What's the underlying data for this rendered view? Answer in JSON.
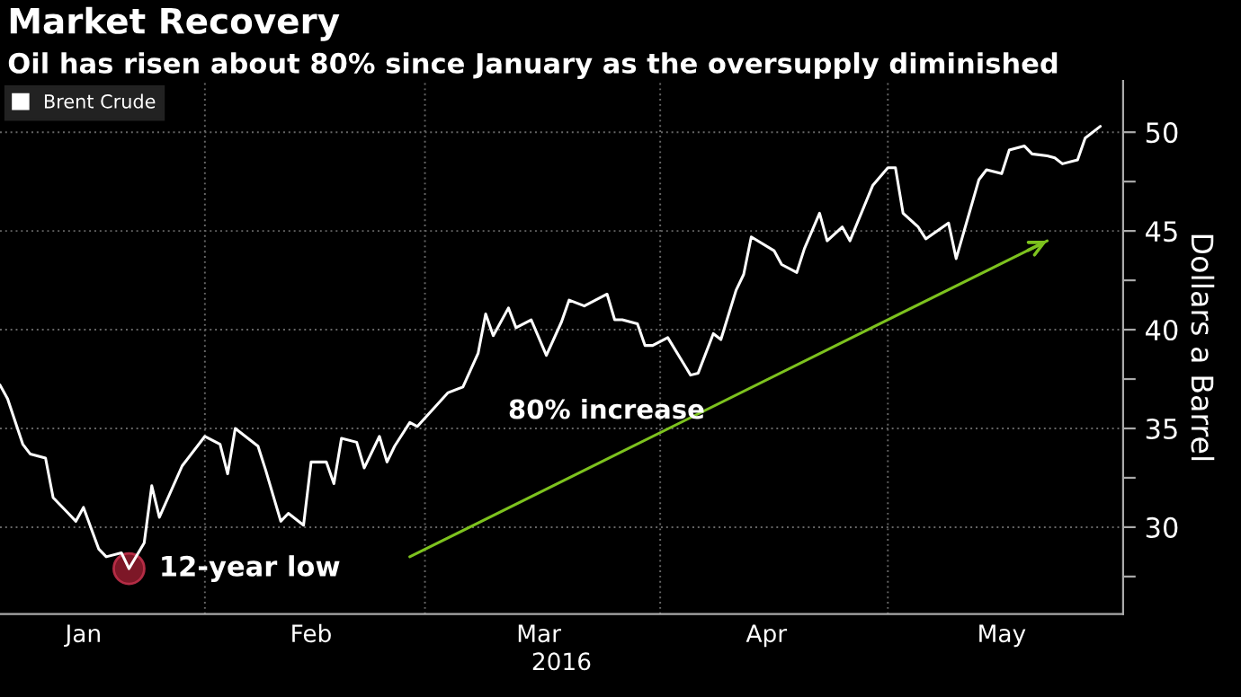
{
  "chart_data": {
    "type": "line",
    "title": "Market Recovery",
    "subtitle": "Oil has risen about 80% since January as the oversupply diminished",
    "xlabel": "2016",
    "ylabel": "Dollars a Barrel",
    "annotations": [
      {
        "text": "12-year low",
        "x": "2016-01-22",
        "y": 27.9
      },
      "80% increase"
    ],
    "series": [
      {
        "name": "Brent Crude",
        "color": "#ffffff",
        "x": [
          "2016-01-05",
          "2016-01-06",
          "2016-01-08",
          "2016-01-09",
          "2016-01-11",
          "2016-01-12",
          "2016-01-14",
          "2016-01-15",
          "2016-01-16",
          "2016-01-18",
          "2016-01-19",
          "2016-01-21",
          "2016-01-22",
          "2016-01-24",
          "2016-01-25",
          "2016-01-26",
          "2016-01-29",
          "2016-02-01",
          "2016-02-03",
          "2016-02-04",
          "2016-02-05",
          "2016-02-08",
          "2016-02-09",
          "2016-02-11",
          "2016-02-12",
          "2016-02-14",
          "2016-02-15",
          "2016-02-17",
          "2016-02-18",
          "2016-02-19",
          "2016-02-21",
          "2016-02-22",
          "2016-02-24",
          "2016-02-25",
          "2016-02-26",
          "2016-02-28",
          "2016-02-29",
          "2016-03-04",
          "2016-03-06",
          "2016-03-08",
          "2016-03-09",
          "2016-03-10",
          "2016-03-12",
          "2016-03-13",
          "2016-03-15",
          "2016-03-17",
          "2016-03-19",
          "2016-03-20",
          "2016-03-22",
          "2016-03-25",
          "2016-03-26",
          "2016-03-27",
          "2016-03-29",
          "2016-03-30",
          "2016-03-31",
          "2016-04-02",
          "2016-04-05",
          "2016-04-06",
          "2016-04-08",
          "2016-04-09",
          "2016-04-11",
          "2016-04-12",
          "2016-04-13",
          "2016-04-16",
          "2016-04-17",
          "2016-04-19",
          "2016-04-20",
          "2016-04-22",
          "2016-04-23",
          "2016-04-25",
          "2016-04-26",
          "2016-04-29",
          "2016-05-01",
          "2016-05-02",
          "2016-05-03",
          "2016-05-05",
          "2016-05-06",
          "2016-05-09",
          "2016-05-10",
          "2016-05-13",
          "2016-05-14",
          "2016-05-16",
          "2016-05-17",
          "2016-05-19",
          "2016-05-20",
          "2016-05-22",
          "2016-05-23",
          "2016-05-24",
          "2016-05-26",
          "2016-05-27",
          "2016-05-29"
        ],
        "values": [
          37.2,
          36.5,
          34.2,
          33.7,
          33.5,
          31.5,
          30.7,
          30.3,
          31.0,
          28.9,
          28.5,
          28.7,
          27.9,
          29.2,
          32.1,
          30.5,
          33.1,
          34.6,
          34.2,
          32.7,
          35.0,
          34.1,
          32.9,
          30.3,
          30.7,
          30.1,
          33.3,
          33.3,
          32.2,
          34.5,
          34.3,
          33.0,
          34.6,
          33.3,
          34.1,
          35.3,
          35.1,
          36.8,
          37.1,
          38.8,
          40.8,
          39.7,
          41.1,
          40.1,
          40.5,
          38.7,
          40.4,
          41.5,
          41.2,
          41.8,
          40.5,
          40.5,
          40.3,
          39.2,
          39.2,
          39.6,
          37.7,
          37.8,
          39.8,
          39.5,
          42.0,
          42.8,
          44.7,
          44.0,
          43.3,
          42.9,
          44.1,
          45.9,
          44.5,
          45.2,
          44.5,
          47.3,
          48.2,
          48.2,
          45.9,
          45.2,
          44.6,
          45.4,
          43.6,
          47.6,
          48.1,
          47.9,
          49.1,
          49.3,
          48.9,
          48.8,
          48.7,
          48.4,
          48.6,
          49.7,
          50.3
        ]
      },
      {
        "color": "#8b1a2b",
        "type": "scatter",
        "marker": "circle",
        "x": [
          "2016-01-22"
        ],
        "values": [
          27.9
        ]
      },
      {
        "color": "#7dc21e",
        "x": [
          "2016-02-28",
          "2016-05-22"
        ],
        "values": [
          28.5,
          44.5
        ]
      }
    ],
    "xlim": [
      "2016-01-05",
      "2016-06-01"
    ],
    "xticks": [
      {
        "value": "2016-01-16",
        "label": "Jan"
      },
      {
        "value": "2016-02-01",
        "label": null
      },
      {
        "value": "2016-02-15",
        "label": "Feb"
      },
      {
        "value": "2016-03-01",
        "label": null
      },
      {
        "value": "2016-03-16",
        "label": "Mar"
      },
      {
        "value": "2016-04-01",
        "label": null
      },
      {
        "value": "2016-04-15",
        "label": "Apr"
      },
      {
        "value": "2016-05-01",
        "label": null
      },
      {
        "value": "2016-05-16",
        "label": "May"
      }
    ],
    "ylim": [
      25.6,
      52.6
    ],
    "yticks": [
      {
        "value": 27.5,
        "label": null
      },
      30,
      {
        "value": 32.5,
        "label": null
      },
      35,
      {
        "value": 37.5,
        "label": null
      },
      40,
      {
        "value": 42.5,
        "label": null
      },
      45,
      {
        "value": 47.5,
        "label": null
      },
      50
    ],
    "grid": true,
    "legend": "top left"
  }
}
